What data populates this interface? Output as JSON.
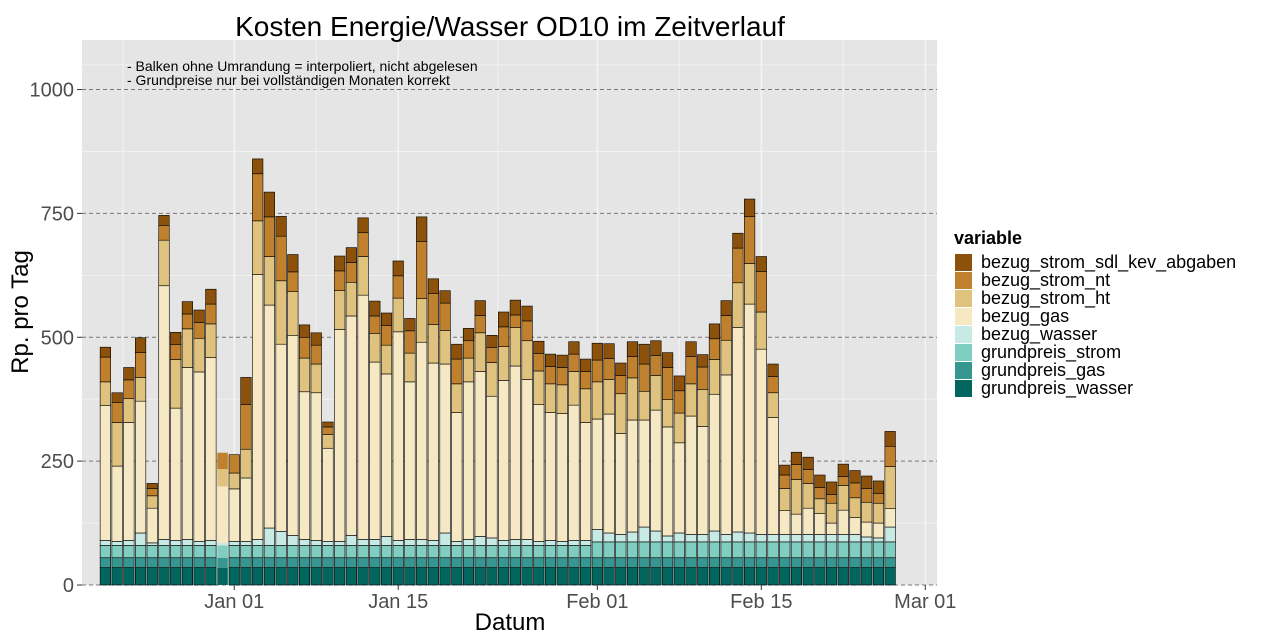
{
  "chart_data": {
    "type": "bar",
    "stacked": true,
    "title": "Kosten Energie/Wasser OD10 im Zeitverlauf",
    "xlabel": "Datum",
    "ylabel": "Rp. pro Tag",
    "ylim": [
      0,
      1100
    ],
    "y_ticks": [
      0,
      250,
      500,
      750,
      1000
    ],
    "x_ticks": [
      {
        "label": "Jan 01",
        "day": 0
      },
      {
        "label": "Jan 15",
        "day": 14
      },
      {
        "label": "Feb 01",
        "day": 31
      },
      {
        "label": "Feb 15",
        "day": 45
      },
      {
        "label": "Mar 01",
        "day": 59
      }
    ],
    "x_range_days": [
      -13,
      60
    ],
    "grid": true,
    "legend_position": "right",
    "legend_title": "variable",
    "annotations": [
      "- Balken ohne Umrandung = interpoliert, nicht abgelesen",
      "- Grundpreise nur bei vollständigen Monaten korrekt"
    ],
    "dates": [
      "2021-12-21",
      "2021-12-22",
      "2021-12-23",
      "2021-12-24",
      "2021-12-25",
      "2021-12-26",
      "2021-12-27",
      "2021-12-28",
      "2021-12-29",
      "2021-12-30",
      "2021-12-31",
      "2022-01-01",
      "2022-01-02",
      "2022-01-03",
      "2022-01-04",
      "2022-01-05",
      "2022-01-06",
      "2022-01-07",
      "2022-01-08",
      "2022-01-09",
      "2022-01-10",
      "2022-01-11",
      "2022-01-12",
      "2022-01-13",
      "2022-01-14",
      "2022-01-15",
      "2022-01-16",
      "2022-01-17",
      "2022-01-18",
      "2022-01-19",
      "2022-01-20",
      "2022-01-21",
      "2022-01-22",
      "2022-01-23",
      "2022-01-24",
      "2022-01-25",
      "2022-01-26",
      "2022-01-27",
      "2022-01-28",
      "2022-01-29",
      "2022-01-30",
      "2022-01-31",
      "2022-02-01",
      "2022-02-02",
      "2022-02-03",
      "2022-02-04",
      "2022-02-05",
      "2022-02-06",
      "2022-02-07",
      "2022-02-08",
      "2022-02-09",
      "2022-02-10",
      "2022-02-11",
      "2022-02-12",
      "2022-02-13",
      "2022-02-14",
      "2022-02-15",
      "2022-02-16",
      "2022-02-17",
      "2022-02-18",
      "2022-02-19",
      "2022-02-20",
      "2022-02-21",
      "2022-02-22",
      "2022-02-23",
      "2022-02-24",
      "2022-02-25",
      "2022-02-26"
    ],
    "interpolated": [
      false,
      false,
      false,
      false,
      false,
      false,
      false,
      false,
      false,
      false,
      true,
      false,
      false,
      false,
      false,
      false,
      false,
      false,
      false,
      false,
      false,
      false,
      false,
      false,
      false,
      false,
      false,
      false,
      false,
      false,
      false,
      false,
      false,
      false,
      false,
      false,
      false,
      false,
      false,
      false,
      false,
      false,
      false,
      false,
      false,
      false,
      false,
      false,
      false,
      false,
      false,
      false,
      false,
      false,
      false,
      false,
      false,
      false,
      false,
      false,
      false,
      false,
      false,
      false,
      false,
      false,
      false,
      false
    ],
    "series": [
      {
        "name": "grundpreis_wasser",
        "color": "#01665E",
        "values": [
          35,
          35,
          35,
          35,
          35,
          35,
          35,
          35,
          35,
          35,
          35,
          35,
          35,
          35,
          35,
          35,
          35,
          35,
          35,
          35,
          35,
          35,
          35,
          35,
          35,
          35,
          35,
          35,
          35,
          35,
          35,
          35,
          35,
          35,
          35,
          35,
          35,
          35,
          35,
          35,
          35,
          35,
          35,
          35,
          35,
          35,
          35,
          35,
          35,
          35,
          35,
          35,
          35,
          35,
          35,
          35,
          35,
          35,
          35,
          35,
          35,
          35,
          35,
          35,
          35,
          35,
          35,
          35
        ]
      },
      {
        "name": "grundpreis_gas",
        "color": "#35978F",
        "values": [
          20,
          20,
          20,
          20,
          20,
          20,
          20,
          20,
          20,
          20,
          20,
          20,
          20,
          20,
          20,
          20,
          20,
          20,
          20,
          20,
          20,
          20,
          20,
          20,
          20,
          20,
          20,
          20,
          20,
          20,
          20,
          20,
          20,
          20,
          20,
          20,
          20,
          20,
          20,
          20,
          20,
          20,
          20,
          20,
          20,
          20,
          20,
          20,
          20,
          20,
          20,
          20,
          20,
          20,
          20,
          20,
          20,
          20,
          20,
          20,
          20,
          20,
          20,
          20,
          20,
          20,
          20,
          20
        ]
      },
      {
        "name": "grundpreis_strom",
        "color": "#80CDC1",
        "values": [
          25,
          25,
          25,
          25,
          25,
          25,
          25,
          25,
          25,
          25,
          25,
          25,
          25,
          25,
          25,
          25,
          25,
          25,
          25,
          25,
          25,
          25,
          25,
          25,
          25,
          25,
          25,
          25,
          25,
          25,
          25,
          25,
          25,
          25,
          25,
          25,
          25,
          25,
          25,
          25,
          25,
          25,
          32,
          32,
          32,
          32,
          32,
          32,
          32,
          32,
          32,
          32,
          32,
          32,
          32,
          32,
          32,
          32,
          32,
          32,
          32,
          32,
          32,
          32,
          32,
          32,
          32,
          32
        ]
      },
      {
        "name": "bezug_wasser",
        "color": "#C7EAE5",
        "values": [
          10,
          8,
          10,
          25,
          5,
          12,
          10,
          12,
          8,
          10,
          5,
          8,
          8,
          12,
          35,
          28,
          20,
          12,
          10,
          8,
          8,
          20,
          12,
          12,
          18,
          10,
          12,
          12,
          10,
          25,
          8,
          12,
          18,
          15,
          10,
          12,
          12,
          8,
          10,
          8,
          10,
          10,
          25,
          18,
          15,
          20,
          30,
          22,
          12,
          18,
          15,
          15,
          22,
          15,
          20,
          18,
          15,
          15,
          15,
          15,
          15,
          15,
          15,
          15,
          15,
          10,
          8,
          30
        ]
      },
      {
        "name": "bezug_gas",
        "color": "#F6E8C3",
        "values": [
          272,
          152,
          238,
          266,
          70,
          512,
          267,
          347,
          342,
          369,
          114,
          106,
          128,
          535,
          450,
          378,
          404,
          298,
          298,
          188,
          428,
          443,
          493,
          358,
          328,
          421,
          318,
          398,
          358,
          341,
          260,
          318,
          333,
          286,
          323,
          350,
          323,
          276,
          258,
          258,
          273,
          238,
          223,
          240,
          204,
          226,
          216,
          244,
          220,
          182,
          239,
          218,
          276,
          322,
          413,
          462,
          374,
          236,
          48,
          41,
          53,
          42,
          23,
          49,
          34,
          30,
          30,
          37
        ]
      },
      {
        "name": "bezug_strom_ht",
        "color": "#DFC27D",
        "values": [
          48,
          88,
          48,
          48,
          25,
          92,
          98,
          78,
          68,
          68,
          35,
          32,
          58,
          108,
          98,
          128,
          88,
          68,
          58,
          28,
          78,
          68,
          78,
          58,
          58,
          68,
          58,
          88,
          78,
          68,
          58,
          48,
          78,
          68,
          68,
          78,
          78,
          68,
          58,
          58,
          68,
          68,
          75,
          70,
          80,
          85,
          58,
          70,
          55,
          60,
          65,
          75,
          70,
          70,
          90,
          82,
          75,
          50,
          45,
          70,
          50,
          30,
          40,
          50,
          40,
          40,
          40,
          85
        ]
      },
      {
        "name": "bezug_strom_nt",
        "color": "#BF812D",
        "values": [
          50,
          40,
          38,
          50,
          15,
          30,
          30,
          30,
          32,
          40,
          33,
          37,
          90,
          95,
          80,
          90,
          40,
          42,
          38,
          15,
          40,
          40,
          48,
          35,
          40,
          45,
          45,
          115,
          62,
          55,
          50,
          35,
          35,
          30,
          40,
          25,
          40,
          35,
          35,
          35,
          35,
          35,
          44,
          42,
          37,
          43,
          55,
          40,
          65,
          45,
          55,
          45,
          42,
          50,
          70,
          95,
          82,
          33,
          27,
          30,
          28,
          23,
          18,
          18,
          30,
          28,
          20,
          41
        ]
      },
      {
        "name": "bezug_strom_sdl_kev_abgaben",
        "color": "#8C510A",
        "values": [
          20,
          20,
          25,
          30,
          10,
          20,
          25,
          25,
          25,
          30,
          0,
          0,
          55,
          30,
          50,
          40,
          35,
          25,
          25,
          10,
          30,
          30,
          30,
          30,
          25,
          30,
          25,
          50,
          30,
          25,
          30,
          25,
          30,
          25,
          30,
          30,
          30,
          25,
          25,
          25,
          25,
          25,
          34,
          30,
          25,
          30,
          40,
          30,
          30,
          30,
          30,
          25,
          30,
          30,
          30,
          35,
          30,
          25,
          20,
          25,
          25,
          25,
          25,
          25,
          25,
          25,
          25,
          30
        ]
      }
    ]
  }
}
